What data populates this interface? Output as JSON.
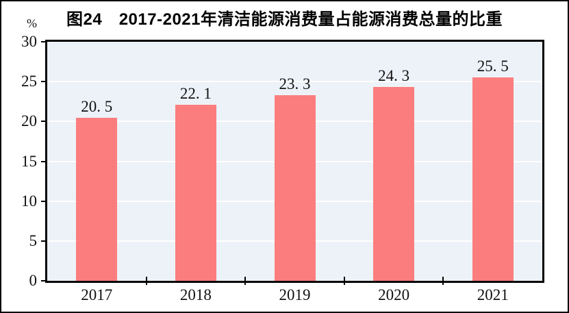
{
  "chart_data": {
    "type": "bar",
    "title": "图24　2017-2021年清洁能源消费量占能源消费总量的比重",
    "unit_label": "%",
    "categories": [
      "2017",
      "2018",
      "2019",
      "2020",
      "2021"
    ],
    "values": [
      20.5,
      22.1,
      23.3,
      24.3,
      25.5
    ],
    "bar_value_labels": [
      "20. 5",
      "22. 1",
      "23. 3",
      "24. 3",
      "25. 5"
    ],
    "xlabel": "",
    "ylabel": "%",
    "ylim": [
      0,
      30
    ],
    "yticks": [
      0,
      5,
      10,
      15,
      20,
      25,
      30
    ],
    "grid": "horizontal white gridlines at y ticks, drawn behind bars",
    "legend": "none",
    "colors": {
      "bar": "#FC7D7D",
      "plot_background": "#ECF2F8",
      "gridline": "#FFFFFF",
      "axis_and_border": "#000000",
      "text": "#111111",
      "page_background": "#FFFFFF"
    }
  }
}
